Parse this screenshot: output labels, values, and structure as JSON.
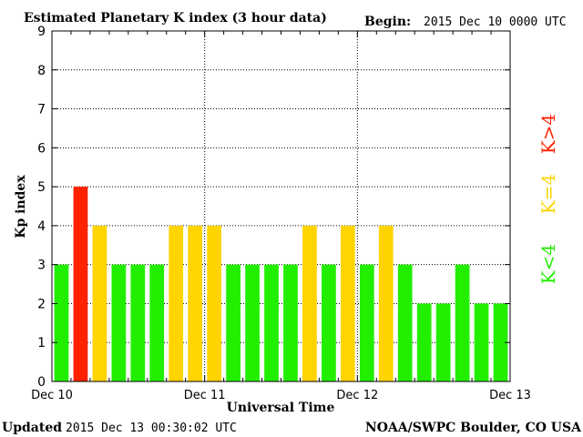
{
  "header": {
    "title": "Estimated Planetary K index (3 hour data)",
    "begin_label": "Begin:",
    "begin_value": "2015 Dec 10 0000 UTC"
  },
  "footer": {
    "updated_label": "Updated",
    "updated_value": "2015 Dec 13 00:30:02 UTC",
    "credit": "NOAA/SWPC Boulder, CO USA"
  },
  "legend": {
    "below": "K<4",
    "equal": "K=4",
    "above": "K>4"
  },
  "colors": {
    "below": "#22ee00",
    "equal": "#ffd400",
    "above": "#ff2200"
  },
  "chart_data": {
    "type": "bar",
    "title": "Estimated Planetary K index (3 hour data)",
    "xlabel": "Universal Time",
    "ylabel": "Kp index",
    "ylim": [
      0,
      9
    ],
    "yticks": [
      "0",
      "1",
      "2",
      "3",
      "4",
      "5",
      "6",
      "7",
      "8",
      "9"
    ],
    "xticks": [
      "Dec 10",
      "Dec 11",
      "Dec 12",
      "Dec 13"
    ],
    "grid": true,
    "bar_interval_hours": 3,
    "values": [
      3,
      5,
      4,
      3,
      3,
      3,
      4,
      4,
      4,
      3,
      3,
      3,
      3,
      4,
      3,
      4,
      3,
      4,
      3,
      2,
      2,
      3,
      2,
      2
    ]
  }
}
